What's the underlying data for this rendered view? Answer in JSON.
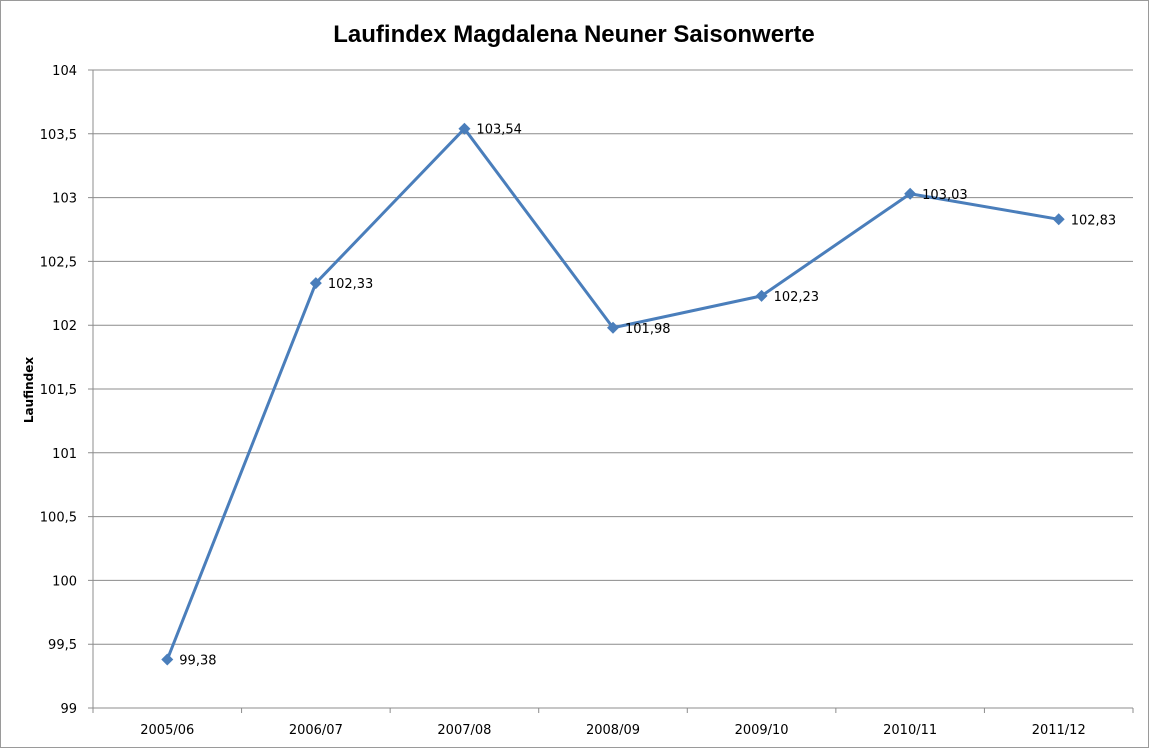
{
  "chart_data": {
    "type": "line",
    "title": "Laufindex Magdalena Neuner Saisonwerte",
    "ylabel": "Laufindex",
    "xlabel": "",
    "categories": [
      "2005/06",
      "2006/07",
      "2007/08",
      "2008/09",
      "2009/10",
      "2010/11",
      "2011/12"
    ],
    "series": [
      {
        "values": [
          99.38,
          102.33,
          103.54,
          101.98,
          102.23,
          103.03,
          102.83
        ],
        "data_labels": [
          "99,38",
          "102,33",
          "103,54",
          "101,98",
          "102,23",
          "103,03",
          "102,83"
        ]
      }
    ],
    "ylim": [
      99,
      104
    ],
    "yticks": [
      99,
      99.5,
      100,
      100.5,
      101,
      101.5,
      102,
      102.5,
      103,
      103.5,
      104
    ],
    "ytick_labels": [
      "99",
      "99,5",
      "100",
      "100,5",
      "101",
      "101,5",
      "102",
      "102,5",
      "103",
      "103,5",
      "104"
    ],
    "grid": true,
    "legend": "none",
    "colors": {
      "series": "#4a7ebb",
      "grid": "#8c8c8c",
      "axis": "#8c8c8c"
    },
    "marker": "diamond"
  }
}
